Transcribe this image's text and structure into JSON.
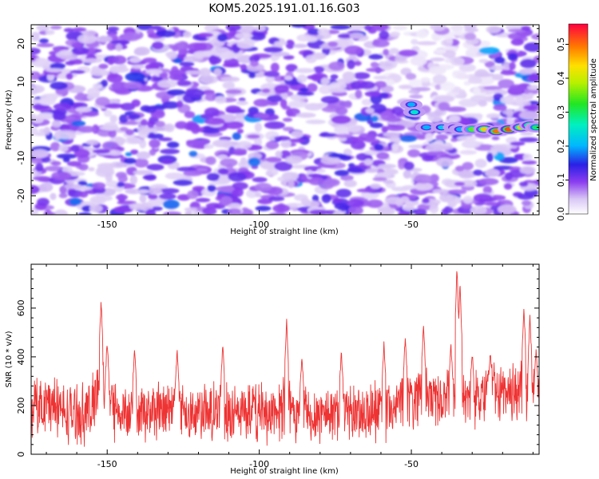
{
  "title": "KOM5.2025.191.01.16.G03",
  "chart_data": [
    {
      "type": "heatmap",
      "xlabel": "Height of straight line (km)",
      "ylabel": "Frequency (Hz)",
      "xlim": [
        -175,
        -8
      ],
      "ylim": [
        -25,
        25
      ],
      "x_ticks": [
        -150,
        -100,
        -50
      ],
      "y_ticks": [
        -20,
        -10,
        0,
        10,
        20
      ],
      "grid": false,
      "colorbar": {
        "label": "Normalized spectral amplitude",
        "range": [
          0,
          0.56
        ],
        "ticks": [
          0.0,
          0.1,
          0.2,
          0.3,
          0.4,
          0.5
        ],
        "colormap": "rainbow-white-to-red"
      },
      "signal_track": [
        {
          "x": -50,
          "y": 4,
          "amp": 0.2
        },
        {
          "x": -49,
          "y": 2,
          "amp": 0.25
        },
        {
          "x": -45,
          "y": -2,
          "amp": 0.2
        },
        {
          "x": -40,
          "y": -2,
          "amp": 0.22
        },
        {
          "x": -36,
          "y": -2,
          "amp": 0.18
        },
        {
          "x": -34,
          "y": -2.5,
          "amp": 0.2
        },
        {
          "x": -30,
          "y": -2.5,
          "amp": 0.35
        },
        {
          "x": -26,
          "y": -2.5,
          "amp": 0.45
        },
        {
          "x": -22,
          "y": -3,
          "amp": 0.5
        },
        {
          "x": -18,
          "y": -2.5,
          "amp": 0.52
        },
        {
          "x": -14,
          "y": -2,
          "amp": 0.45
        },
        {
          "x": -11,
          "y": -1.5,
          "amp": 0.45
        },
        {
          "x": -9,
          "y": -2,
          "amp": 0.3
        }
      ]
    },
    {
      "type": "line",
      "xlabel": "Height of straight line (km)",
      "ylabel": "SNR (10 * v/v)",
      "xlim": [
        -175,
        -8
      ],
      "ylim": [
        0,
        780
      ],
      "x_ticks": [
        -150,
        -100,
        -50
      ],
      "y_ticks": [
        0,
        200,
        400,
        600
      ],
      "color": "#ee3333",
      "grid": false,
      "baseline": 170,
      "noise_amplitude": 110,
      "peaks": [
        {
          "x": -152,
          "y": 650
        },
        {
          "x": -150,
          "y": 480
        },
        {
          "x": -141,
          "y": 440
        },
        {
          "x": -127,
          "y": 440
        },
        {
          "x": -112,
          "y": 470
        },
        {
          "x": -91,
          "y": 560
        },
        {
          "x": -86,
          "y": 410
        },
        {
          "x": -73,
          "y": 430
        },
        {
          "x": -59,
          "y": 470
        },
        {
          "x": -52,
          "y": 500
        },
        {
          "x": -46,
          "y": 550
        },
        {
          "x": -37,
          "y": 470
        },
        {
          "x": -35,
          "y": 780
        },
        {
          "x": -34,
          "y": 710
        },
        {
          "x": -30,
          "y": 440
        },
        {
          "x": -24,
          "y": 440
        },
        {
          "x": -13,
          "y": 620
        },
        {
          "x": -11,
          "y": 580
        },
        {
          "x": -9,
          "y": 450
        }
      ],
      "region_boost": [
        {
          "from": -175,
          "to": -165,
          "add": 40
        },
        {
          "from": -155,
          "to": -148,
          "add": 60
        },
        {
          "from": -55,
          "to": -30,
          "add": 60
        },
        {
          "from": -30,
          "to": -8,
          "add": 90
        }
      ]
    }
  ]
}
